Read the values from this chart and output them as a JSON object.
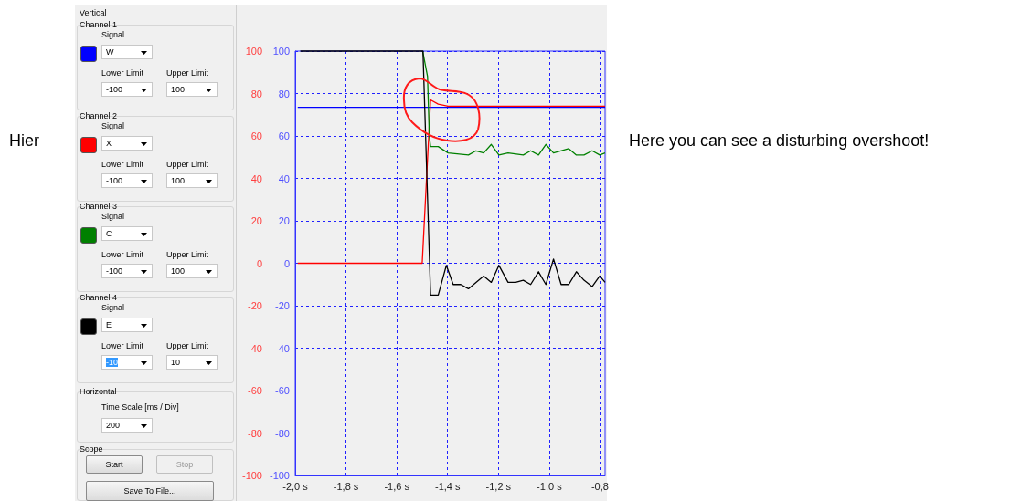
{
  "chart_data": {
    "type": "line",
    "annotations": [
      "Hier",
      "Here you can see a disturbing overshoot!",
      "Vertical",
      "Channel 1",
      "Signal",
      "W",
      "Lower Limit",
      "Upper Limit",
      "-100",
      "100",
      "Channel 2",
      "Signal",
      "X",
      "Lower Limit",
      "Upper Limit",
      "-100",
      "100",
      "Channel 3",
      "Signal",
      "C",
      "Lower Limit",
      "Upper Limit",
      "-100",
      "100",
      "Channel 4",
      "Signal",
      "E",
      "Lower Limit",
      "Upper Limit",
      "-10",
      "10",
      "Horizontal",
      "Time Scale [ms / Div]",
      "200",
      "Scope",
      "Start",
      "Stop",
      "Save To File..."
    ],
    "xlim": [
      -2.0,
      -0.78
    ],
    "xticks": [
      {
        "value": -2.0,
        "label": "-2,0 s"
      },
      {
        "value": -1.8,
        "label": "-1,8 s"
      },
      {
        "value": -1.6,
        "label": "-1,6 s"
      },
      {
        "value": -1.4,
        "label": "-1,4 s"
      },
      {
        "value": -1.2,
        "label": "-1,2 s"
      },
      {
        "value": -1.0,
        "label": "-1,0 s"
      },
      {
        "value": -0.8,
        "label": "-0,8"
      }
    ],
    "ylim": [
      -100,
      100
    ],
    "yticks": [
      -100,
      -80,
      -60,
      -40,
      -20,
      0,
      20,
      40,
      60,
      80,
      100
    ],
    "y2lim": [
      -100,
      100
    ],
    "y2ticks": [
      -100,
      -80,
      -60,
      -40,
      -20,
      0,
      20,
      40,
      60,
      80,
      100
    ],
    "grid": true,
    "marker": "none",
    "line_style": "solid",
    "series": [
      {
        "color": "#0000ff",
        "x": [
          -1.99,
          -0.78
        ],
        "values": [
          73.5,
          73.5
        ]
      },
      {
        "color": "#ff0000",
        "x": [
          -1.99,
          -1.5,
          -1.467,
          -1.437,
          -1.398,
          -1.2,
          -1.0,
          -0.78
        ],
        "values": [
          0,
          0,
          77,
          75,
          74,
          74,
          74,
          74
        ]
      },
      {
        "color": "#008000",
        "x": [
          -1.498,
          -1.479,
          -1.472,
          -1.467,
          -1.437,
          -1.398,
          -1.318,
          -1.288,
          -1.258,
          -1.228,
          -1.198,
          -1.162,
          -1.102,
          -1.073,
          -1.042,
          -1.013,
          -0.983,
          -0.923,
          -0.893,
          -0.863,
          -0.831,
          -0.801,
          -0.78
        ],
        "values": [
          100,
          88,
          60,
          55,
          55,
          52,
          51,
          53,
          52,
          56,
          51,
          52,
          51,
          53,
          51,
          56,
          52,
          54,
          51,
          51,
          53,
          51,
          52
        ]
      },
      {
        "color": "#000000",
        "x": [
          -1.98,
          -1.497,
          -1.467,
          -1.437,
          -1.405,
          -1.378,
          -1.348,
          -1.318,
          -1.288,
          -1.258,
          -1.228,
          -1.198,
          -1.162,
          -1.132,
          -1.102,
          -1.073,
          -1.042,
          -1.013,
          -0.983,
          -0.953,
          -0.923,
          -0.893,
          -0.863,
          -0.831,
          -0.801,
          -0.78
        ],
        "values": [
          100,
          100,
          -15,
          -15,
          -1,
          -10,
          -10,
          -12,
          -9,
          -6,
          -9,
          -1,
          -9,
          -9,
          -8,
          -10,
          -4,
          -10,
          2,
          -10,
          -10,
          -4,
          -8,
          -11,
          -6,
          -9
        ]
      }
    ]
  }
}
